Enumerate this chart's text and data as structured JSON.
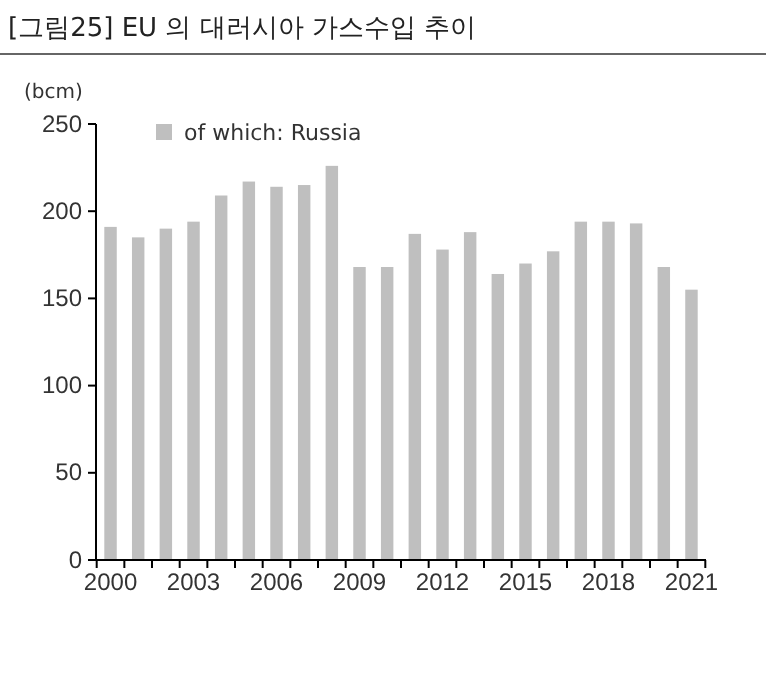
{
  "chart_data": {
    "type": "bar",
    "title": "[그림25]  EU 의 대러시아 가스수입 추이",
    "ylabel": "(bcm)",
    "categories": [
      "2000",
      null,
      null,
      "2003",
      null,
      null,
      "2006",
      null,
      null,
      "2009",
      null,
      null,
      "2012",
      null,
      null,
      "2015",
      null,
      null,
      "2018",
      null,
      null,
      "2021"
    ],
    "series": [
      {
        "name": "of which: Russia",
        "color": "#bfbfbf",
        "values": [
          191,
          185,
          190,
          194,
          209,
          217,
          214,
          215,
          226,
          168,
          168,
          187,
          178,
          188,
          164,
          170,
          177,
          194,
          194,
          193,
          168,
          155
        ]
      }
    ],
    "ylim": [
      0,
      250
    ],
    "yticks": [
      0,
      50,
      100,
      150,
      200,
      250
    ],
    "grid": false,
    "legend": "top left"
  }
}
